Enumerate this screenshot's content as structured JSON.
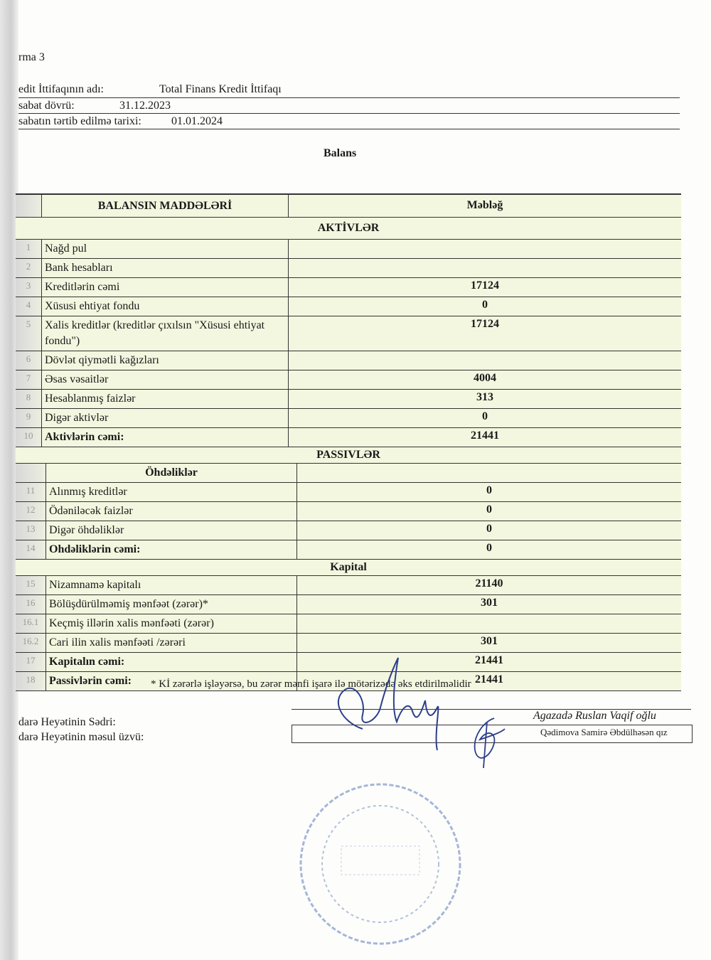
{
  "header": {
    "form_label": "rma 3",
    "union_name_label": "edit İttifaqının adı:",
    "union_name": "Total Finans Kredit İttifaqı",
    "period_label": "sabat dövrü:",
    "period": "31.12.2023",
    "compiled_label": "sabatın tərtib edilmə tarixi:",
    "compiled_date": "01.01.2024",
    "title": "Balans"
  },
  "table": {
    "col_items": "BALANSIN MADDƏLƏRİ",
    "col_amount": "Məbləğ",
    "assets_title": "AKTİVLƏR",
    "assets": [
      {
        "n": "1",
        "label": "Nağd pul",
        "value": "",
        "bold": false
      },
      {
        "n": "2",
        "label": "Bank hesabları",
        "value": "",
        "bold": false
      },
      {
        "n": "3",
        "label": "Kreditlərin cəmi",
        "value": "17124",
        "bold": false
      },
      {
        "n": "4",
        "label": "Xüsusi ehtiyat fondu",
        "value": "0",
        "bold": false
      },
      {
        "n": "5",
        "label": "Xalis kreditlər (kreditlər çıxılsın \"Xüsusi ehtiyat fondu\")",
        "value": "17124",
        "bold": false
      },
      {
        "n": "6",
        "label": "Dövlət qiymətli kağızları",
        "value": "",
        "bold": false
      },
      {
        "n": "7",
        "label": "Əsas vəsaitlər",
        "value": "4004",
        "bold": false
      },
      {
        "n": "8",
        "label": "Hesablanmış faizlər",
        "value": "313",
        "bold": false
      },
      {
        "n": "9",
        "label": "Digər aktivlər",
        "value": "0",
        "bold": false
      },
      {
        "n": "10",
        "label": "Aktivlərin cəmi:",
        "value": "21441",
        "bold": true
      }
    ],
    "liabilities_title": "PASSIVLƏR",
    "obligations_title": "Öhdəliklər",
    "obligations": [
      {
        "n": "11",
        "label": "Alınmış kreditlər",
        "value": "0",
        "bold": false
      },
      {
        "n": "12",
        "label": "Ödəniləcək faizlər",
        "value": "0",
        "bold": false
      },
      {
        "n": "13",
        "label": "Digər öhdəliklər",
        "value": "0",
        "bold": false
      },
      {
        "n": "14",
        "label": "Ohdəliklərin cəmi:",
        "value": "0",
        "bold": true
      }
    ],
    "capital_title": "Kapital",
    "capital": [
      {
        "n": "15",
        "label": "Nizamnamə kapitalı",
        "value": "21140",
        "bold": false
      },
      {
        "n": "16",
        "label": "Bölüşdürülməmiş mənfəət (zərər)*",
        "value": "301",
        "bold": false
      },
      {
        "n": "16.1",
        "label": "Keçmiş illərin xalis mənfəəti (zərər)",
        "value": "",
        "bold": false
      },
      {
        "n": "16.2",
        "label": "Cari ilin xalis mənfəəti /zərəri",
        "value": "301",
        "bold": false
      },
      {
        "n": "17",
        "label": "Kapitalın cəmi:",
        "value": "21441",
        "bold": true
      },
      {
        "n": "18",
        "label": "Passivlərin cəmi:",
        "value": "21441",
        "bold": true
      }
    ]
  },
  "footer": {
    "note": "* Kİ  zərərlə işləyərsə, bu zərər mənfi işarə ilə mötərizədə əks  etdirilməlidir",
    "chair_label": "darə Heyətinin Sədri:",
    "chair_name": "Agazadə  Ruslan  Vaqif oğlu",
    "member_label": "darə Heyətinin məsul üzvü:",
    "member_name": "Qədimova Samirə Əbdülhəsən qız"
  },
  "colors": {
    "table_bg": "#f3f7df",
    "ink": "#1a1a1a",
    "signature": "#2c3f8a",
    "stamp": "#7f97c8"
  }
}
